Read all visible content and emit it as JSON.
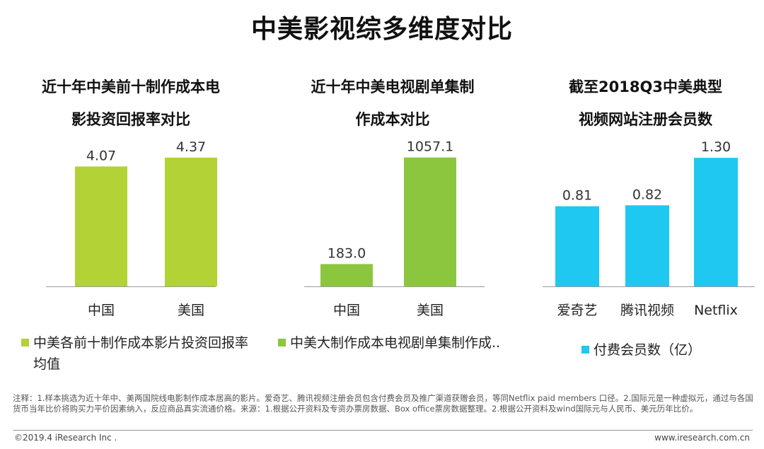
{
  "title": "中美影视综多维度对比",
  "colors": {
    "green_light": "#b2d235",
    "green": "#8cc63f",
    "blue": "#1ec8f0"
  },
  "chart_data": [
    {
      "type": "bar",
      "title_lines": [
        "近十年中美前十制作成本电",
        "影投资回报率对比"
      ],
      "categories": [
        "中国",
        "美国"
      ],
      "series": [
        {
          "name": "中美各前十制作成本影片投资回报率均值",
          "values": [
            4.07,
            4.37
          ]
        }
      ],
      "data_labels": [
        "4.07",
        "4.37"
      ],
      "legend_lines": [
        "中美各前十制作成本影片投资回报率",
        "均值"
      ],
      "ylim": [
        0,
        4.8
      ],
      "color": "#b2d235"
    },
    {
      "type": "bar",
      "title_lines": [
        "近十年中美电视剧单集制",
        "作成本对比"
      ],
      "categories": [
        "中国",
        "美国"
      ],
      "series": [
        {
          "name": "中美大制作成本电视剧单集制作成..",
          "values": [
            183.0,
            1057.1
          ]
        }
      ],
      "data_labels": [
        "183.0",
        "1057.1"
      ],
      "legend_lines": [
        "中美大制作成本电视剧单集制作成.."
      ],
      "ylim": [
        0,
        1160
      ],
      "color": "#8cc63f"
    },
    {
      "type": "bar",
      "title_lines": [
        "截至2018Q3中美典型",
        "视频网站注册会员数"
      ],
      "categories": [
        "爱奇艺",
        "腾讯视频",
        "Netflix"
      ],
      "series": [
        {
          "name": "付费会员数（亿）",
          "values": [
            0.81,
            0.82,
            1.3
          ]
        }
      ],
      "data_labels": [
        "0.81",
        "0.82",
        "1.30"
      ],
      "legend_lines": [
        "付费会员数（亿）"
      ],
      "ylim": [
        0,
        1.43
      ],
      "color": "#1ec8f0"
    }
  ],
  "note": "注释：1.样本挑选为近十年中、美两国院线电影制作成本居高的影片。爱奇艺、腾讯视频注册会员包含付费会员及推广渠道获赠会员，等同Netflix paid members 口径。2.国际元是一种虚拟元，通过与各国货币当年比价将购买力平价因素纳入，反应商品真实流通价格。来源：1.根据公开资料及专资办票房数据、Box office票房数据整理。2.根据公开资料及wind国际元与人民币、美元历年比价。",
  "footer": {
    "left": "©2019.4 iResearch Inc .",
    "right": "www.iresearch.com.cn"
  }
}
